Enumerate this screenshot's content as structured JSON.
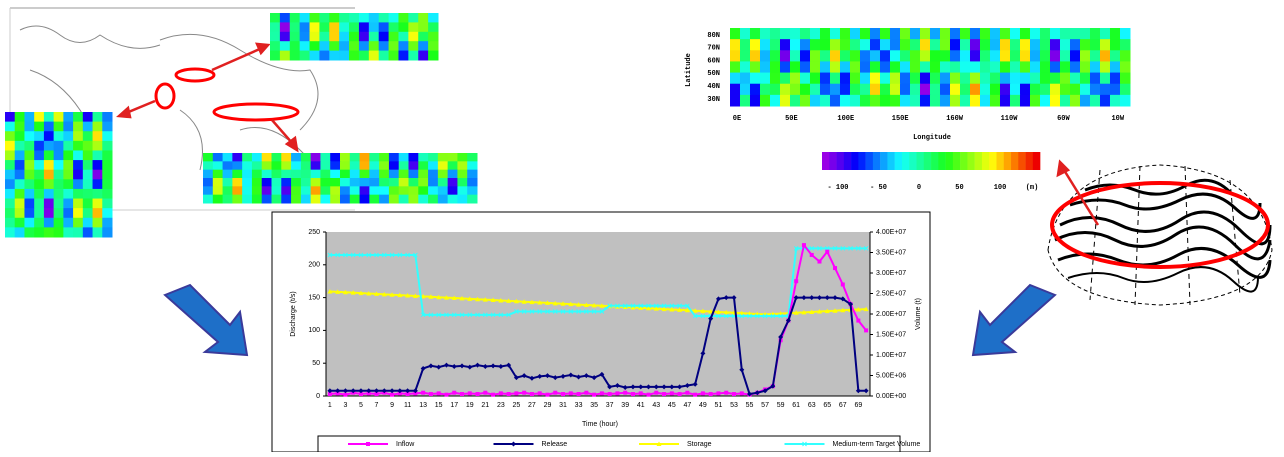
{
  "heatmap": {
    "y_axis_title": "Latitude",
    "x_axis_title": "Longitude",
    "latitude_labels": [
      "80N",
      "70N",
      "60N",
      "50N",
      "40N",
      "30N"
    ],
    "longitude_labels": [
      "0E",
      "50E",
      "100E",
      "150E",
      "160W",
      "110W",
      "60W",
      "10W"
    ]
  },
  "colorbar": {
    "labels": [
      "- 100",
      "- 50",
      "0",
      "50",
      "100"
    ],
    "unit": "(m)"
  },
  "chart_data": {
    "type": "line",
    "x_axis_title": "Time (hour)",
    "y_axis_title": "Discharge (t/s)",
    "y2_axis_title": "Volume (t)",
    "categories": [
      1,
      null,
      3,
      null,
      5,
      null,
      7,
      null,
      9,
      null,
      11,
      null,
      13,
      null,
      15,
      null,
      17,
      null,
      19,
      null,
      21,
      null,
      23,
      null,
      25,
      null,
      27,
      null,
      29,
      null,
      31,
      null,
      33,
      null,
      35,
      null,
      37,
      null,
      39,
      null,
      41,
      null,
      43,
      null,
      45,
      null,
      47,
      null,
      49,
      null,
      51,
      null,
      53,
      null,
      55,
      null,
      57,
      null,
      59,
      null,
      61,
      null,
      63,
      null,
      65,
      null,
      67,
      null,
      69,
      null
    ],
    "ylim": [
      0,
      250
    ],
    "yticks": [
      0,
      50,
      100,
      150,
      200,
      250
    ],
    "y2lim": [
      0,
      40000000.0
    ],
    "y2ticks": [
      {
        "value": 0,
        "label": "0.00E+00"
      },
      {
        "value": 5000000.0,
        "label": "5.00E+06"
      },
      {
        "value": 10000000.0,
        "label": "1.00E+07"
      },
      {
        "value": 15000000.0,
        "label": "1.50E+07"
      },
      {
        "value": 20000000.0,
        "label": "2.00E+07"
      },
      {
        "value": 25000000.0,
        "label": "2.50E+07"
      },
      {
        "value": 30000000.0,
        "label": "3.00E+07"
      },
      {
        "value": 35000000.0,
        "label": "3.50E+07"
      },
      {
        "value": 40000000.0,
        "label": "4.00E+07"
      }
    ],
    "grid": false,
    "plot_background": "#c0c0c0",
    "legend": "bottom",
    "series": [
      {
        "name": "Inflow",
        "color": "#ff00ff",
        "marker": "square",
        "values": [
          3,
          4,
          2,
          5,
          3,
          4,
          3,
          5,
          2,
          4,
          3,
          4,
          5,
          3,
          4,
          2,
          5,
          3,
          4,
          3,
          5,
          2,
          4,
          3,
          4,
          5,
          3,
          4,
          2,
          5,
          3,
          4,
          3,
          5,
          2,
          4,
          3,
          4,
          5,
          3,
          4,
          2,
          5,
          3,
          4,
          3,
          5,
          2,
          4,
          3,
          4,
          5,
          3,
          4,
          2,
          5,
          10,
          15,
          85,
          115,
          175,
          230,
          215,
          205,
          220,
          195,
          170,
          140,
          115,
          100
        ]
      },
      {
        "name": "Release",
        "color": "#000080",
        "marker": "diamond",
        "values": [
          8,
          8,
          8,
          8,
          8,
          8,
          8,
          8,
          8,
          8,
          8,
          8,
          42,
          46,
          44,
          47,
          45,
          46,
          44,
          47,
          45,
          46,
          45,
          47,
          28,
          31,
          27,
          30,
          31,
          28,
          30,
          32,
          29,
          31,
          28,
          33,
          14,
          16,
          13,
          14,
          14,
          14,
          14,
          14,
          14,
          14,
          16,
          18,
          65,
          118,
          148,
          150,
          150,
          40,
          3,
          5,
          8,
          15,
          90,
          115,
          150,
          150,
          150,
          150,
          150,
          150,
          148,
          140,
          8,
          8
        ]
      },
      {
        "name": "Storage",
        "color": "#ffff00",
        "marker": "triangle",
        "axis": "y2",
        "values": [
          25500000.0,
          25400000.0,
          25300000.0,
          25200000.0,
          25100000.0,
          25000000.0,
          24900000.0,
          24800000.0,
          24700000.0,
          24600000.0,
          24500000.0,
          24400000.0,
          24300000.0,
          24200000.0,
          24100000.0,
          24000000.0,
          23900000.0,
          23800000.0,
          23700000.0,
          23600000.0,
          23500000.0,
          23400000.0,
          23300000.0,
          23200000.0,
          23100000.0,
          23000000.0,
          22900000.0,
          22800000.0,
          22700000.0,
          22600000.0,
          22500000.0,
          22400000.0,
          22300000.0,
          22200000.0,
          22100000.0,
          22000000.0,
          21900000.0,
          21800000.0,
          21700000.0,
          21600000.0,
          21500000.0,
          21400000.0,
          21300000.0,
          21200000.0,
          21100000.0,
          21000000.0,
          20900000.0,
          20800000.0,
          20700000.0,
          20600000.0,
          20500000.0,
          20400000.0,
          20300000.0,
          20200000.0,
          20100000.0,
          20000000.0,
          19900000.0,
          20000000.0,
          20100000.0,
          20200000.0,
          20300000.0,
          20400000.0,
          20500000.0,
          20600000.0,
          20700000.0,
          20800000.0,
          20900000.0,
          21000000.0,
          21100000.0,
          21200000.0
        ]
      },
      {
        "name": "Medium-term Target Volume",
        "color": "#33ffff",
        "marker": "x",
        "axis": "y2",
        "values": [
          34400000.0,
          34400000.0,
          34400000.0,
          34400000.0,
          34400000.0,
          34400000.0,
          34400000.0,
          34400000.0,
          34400000.0,
          34400000.0,
          34400000.0,
          34400000.0,
          19800000.0,
          19800000.0,
          19800000.0,
          19800000.0,
          19800000.0,
          19800000.0,
          19800000.0,
          19800000.0,
          19800000.0,
          19800000.0,
          19800000.0,
          19800000.0,
          20600000.0,
          20600000.0,
          20600000.0,
          20600000.0,
          20600000.0,
          20600000.0,
          20600000.0,
          20600000.0,
          20600000.0,
          20600000.0,
          20600000.0,
          20600000.0,
          22000000.0,
          22000000.0,
          22000000.0,
          22000000.0,
          22000000.0,
          22000000.0,
          22000000.0,
          22000000.0,
          22000000.0,
          22000000.0,
          22000000.0,
          19500000.0,
          19500000.0,
          19500000.0,
          19500000.0,
          19500000.0,
          19500000.0,
          19500000.0,
          19500000.0,
          19500000.0,
          19500000.0,
          19500000.0,
          19500000.0,
          19500000.0,
          36000000.0,
          36000000.0,
          36000000.0,
          36000000.0,
          36000000.0,
          36000000.0,
          36000000.0,
          36000000.0,
          36000000.0,
          36000000.0
        ]
      }
    ]
  }
}
